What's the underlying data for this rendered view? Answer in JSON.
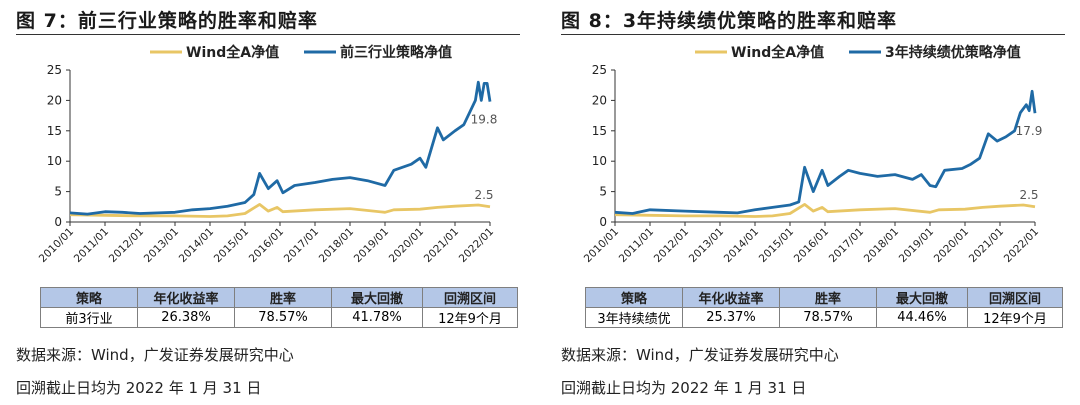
{
  "panels": [
    {
      "title": "图 7：前三行业策略的胜率和赔率",
      "table": {
        "headers": [
          "策略",
          "年化收益率",
          "胜率",
          "最大回撤",
          "回溯区间"
        ],
        "row": [
          "前3行业",
          "26.38%",
          "78.57%",
          "41.78%",
          "12年9个月"
        ]
      },
      "source": "数据来源：Wind，广发证券发展研究中心",
      "note": "回溯截止日均为 2022 年 1 月 31 日"
    },
    {
      "title": "图 8：3年持续绩优策略的胜率和赔率",
      "table": {
        "headers": [
          "策略",
          "年化收益率",
          "胜率",
          "最大回撤",
          "回溯区间"
        ],
        "row": [
          "3年持续绩优",
          "25.37%",
          "78.57%",
          "44.46%",
          "12年9个月"
        ]
      },
      "source": "数据来源：Wind，广发证券发展研究中心",
      "note": "回溯截止日均为 2022 年 1 月 31 日"
    }
  ],
  "chart_data": [
    {
      "type": "line",
      "ylim": [
        0,
        25
      ],
      "yticks": [
        0,
        5,
        10,
        15,
        20,
        25
      ],
      "xticks": [
        "2010/01",
        "2011/01",
        "2012/01",
        "2013/01",
        "2014/01",
        "2015/01",
        "2016/01",
        "2017/01",
        "2018/01",
        "2019/01",
        "2020/01",
        "2021/01",
        "2022/01"
      ],
      "grid": false,
      "legend": "top",
      "series": [
        {
          "name": "Wind全A净值",
          "color": "#e8c665",
          "end_label": "2.5",
          "points": [
            [
              "2010-01",
              1.2
            ],
            [
              "2011-01",
              1.1
            ],
            [
              "2012-01",
              1.0
            ],
            [
              "2013-01",
              1.0
            ],
            [
              "2014-01",
              0.9
            ],
            [
              "2014-07",
              1.0
            ],
            [
              "2015-01",
              1.4
            ],
            [
              "2015-06",
              2.9
            ],
            [
              "2015-09",
              1.8
            ],
            [
              "2015-12",
              2.4
            ],
            [
              "2016-02",
              1.7
            ],
            [
              "2017-01",
              2.0
            ],
            [
              "2018-01",
              2.2
            ],
            [
              "2019-01",
              1.6
            ],
            [
              "2019-04",
              2.0
            ],
            [
              "2020-01",
              2.1
            ],
            [
              "2020-07",
              2.4
            ],
            [
              "2021-01",
              2.6
            ],
            [
              "2021-09",
              2.8
            ],
            [
              "2022-01",
              2.5
            ]
          ]
        },
        {
          "name": "前三行业策略净值",
          "color": "#1f6aa5",
          "end_label": "19.8",
          "points": [
            [
              "2010-01",
              1.5
            ],
            [
              "2010-07",
              1.3
            ],
            [
              "2011-01",
              1.7
            ],
            [
              "2011-07",
              1.6
            ],
            [
              "2012-01",
              1.4
            ],
            [
              "2012-07",
              1.5
            ],
            [
              "2013-01",
              1.6
            ],
            [
              "2013-07",
              2.0
            ],
            [
              "2014-01",
              2.2
            ],
            [
              "2014-07",
              2.6
            ],
            [
              "2015-01",
              3.2
            ],
            [
              "2015-04",
              4.5
            ],
            [
              "2015-06",
              8.0
            ],
            [
              "2015-09",
              5.5
            ],
            [
              "2015-12",
              6.8
            ],
            [
              "2016-02",
              4.8
            ],
            [
              "2016-06",
              6.0
            ],
            [
              "2017-01",
              6.5
            ],
            [
              "2017-07",
              7.0
            ],
            [
              "2018-01",
              7.3
            ],
            [
              "2018-07",
              6.8
            ],
            [
              "2019-01",
              6.0
            ],
            [
              "2019-04",
              8.5
            ],
            [
              "2019-10",
              9.5
            ],
            [
              "2020-01",
              10.5
            ],
            [
              "2020-03",
              9.0
            ],
            [
              "2020-07",
              15.5
            ],
            [
              "2020-09",
              13.5
            ],
            [
              "2021-01",
              15.0
            ],
            [
              "2021-04",
              16.0
            ],
            [
              "2021-08",
              20.0
            ],
            [
              "2021-09",
              23.0
            ],
            [
              "2021-10",
              20.0
            ],
            [
              "2021-11",
              22.8
            ],
            [
              "2021-12",
              22.8
            ],
            [
              "2022-01",
              19.8
            ]
          ]
        }
      ]
    },
    {
      "type": "line",
      "ylim": [
        0,
        25
      ],
      "yticks": [
        0,
        5,
        10,
        15,
        20,
        25
      ],
      "xticks": [
        "2010/01",
        "2011/01",
        "2012/01",
        "2013/01",
        "2014/01",
        "2015/01",
        "2016/01",
        "2017/01",
        "2018/01",
        "2019/01",
        "2020/01",
        "2021/01",
        "2022/01"
      ],
      "grid": false,
      "legend": "top",
      "series": [
        {
          "name": "Wind全A净值",
          "color": "#e8c665",
          "end_label": "2.5",
          "points": [
            [
              "2010-01",
              1.2
            ],
            [
              "2011-01",
              1.1
            ],
            [
              "2012-01",
              1.0
            ],
            [
              "2013-01",
              1.0
            ],
            [
              "2014-01",
              0.9
            ],
            [
              "2014-07",
              1.0
            ],
            [
              "2015-01",
              1.4
            ],
            [
              "2015-06",
              2.9
            ],
            [
              "2015-09",
              1.8
            ],
            [
              "2015-12",
              2.4
            ],
            [
              "2016-02",
              1.7
            ],
            [
              "2017-01",
              2.0
            ],
            [
              "2018-01",
              2.2
            ],
            [
              "2019-01",
              1.6
            ],
            [
              "2019-04",
              2.0
            ],
            [
              "2020-01",
              2.1
            ],
            [
              "2020-07",
              2.4
            ],
            [
              "2021-01",
              2.6
            ],
            [
              "2021-09",
              2.8
            ],
            [
              "2022-01",
              2.5
            ]
          ]
        },
        {
          "name": "3年持续绩优策略净值",
          "color": "#1f6aa5",
          "end_label": "17.9",
          "points": [
            [
              "2010-01",
              1.6
            ],
            [
              "2010-07",
              1.4
            ],
            [
              "2011-01",
              2.0
            ],
            [
              "2012-01",
              1.8
            ],
            [
              "2013-01",
              1.6
            ],
            [
              "2013-07",
              1.5
            ],
            [
              "2014-01",
              2.0
            ],
            [
              "2014-07",
              2.4
            ],
            [
              "2015-01",
              2.8
            ],
            [
              "2015-04",
              3.3
            ],
            [
              "2015-06",
              9.0
            ],
            [
              "2015-09",
              5.0
            ],
            [
              "2015-12",
              8.5
            ],
            [
              "2016-02",
              6.0
            ],
            [
              "2016-06",
              7.5
            ],
            [
              "2016-09",
              8.5
            ],
            [
              "2017-01",
              8.0
            ],
            [
              "2017-07",
              7.5
            ],
            [
              "2018-01",
              7.8
            ],
            [
              "2018-07",
              7.0
            ],
            [
              "2018-10",
              7.8
            ],
            [
              "2019-01",
              6.0
            ],
            [
              "2019-03",
              5.8
            ],
            [
              "2019-06",
              8.5
            ],
            [
              "2019-12",
              8.8
            ],
            [
              "2020-03",
              9.5
            ],
            [
              "2020-06",
              10.5
            ],
            [
              "2020-09",
              14.5
            ],
            [
              "2020-12",
              13.3
            ],
            [
              "2021-03",
              14.0
            ],
            [
              "2021-06",
              15.0
            ],
            [
              "2021-08",
              18.0
            ],
            [
              "2021-10",
              19.3
            ],
            [
              "2021-11",
              18.3
            ],
            [
              "2021-12",
              21.5
            ],
            [
              "2022-01",
              17.9
            ]
          ]
        }
      ]
    }
  ]
}
